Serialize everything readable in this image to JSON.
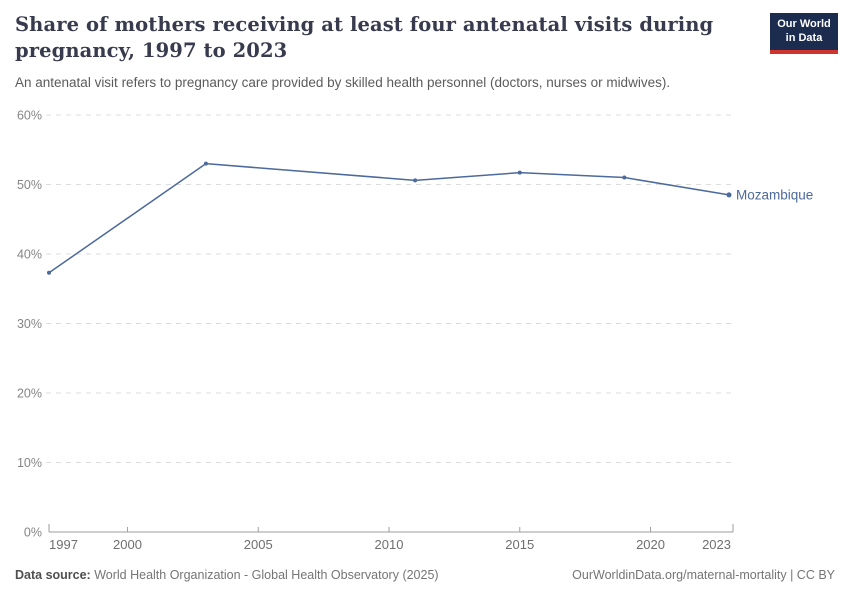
{
  "header": {
    "title": "Share of mothers receiving at least four antenatal visits during pregnancy, 1997 to 2023",
    "subtitle": "An antenatal visit refers to pregnancy care provided by skilled health personnel (doctors, nurses or midwives).",
    "logo": {
      "line1": "Our World",
      "line2": "in Data",
      "bg_color": "#1b2c4e",
      "accent_color": "#d1342c"
    }
  },
  "chart_data": {
    "type": "line",
    "title": "Share of mothers receiving at least four antenatal visits during pregnancy, 1997 to 2023",
    "xlabel": "",
    "ylabel": "",
    "xlim": [
      1997,
      2023
    ],
    "ylim": [
      0,
      60
    ],
    "grid": "horizontal-dashed",
    "legend_position": "end-of-line-label",
    "x_ticks": [
      1997,
      2000,
      2005,
      2010,
      2015,
      2020,
      2023
    ],
    "y_ticks": [
      0,
      10,
      20,
      30,
      40,
      50,
      60
    ],
    "y_tick_labels": [
      "0%",
      "10%",
      "20%",
      "30%",
      "40%",
      "50%",
      "60%"
    ],
    "series": [
      {
        "name": "Mozambique",
        "color": "#4C6A9C",
        "x": [
          1997,
          2003,
          2011,
          2015,
          2019,
          2023
        ],
        "values": [
          37.3,
          53,
          50.6,
          51.7,
          51,
          48.5
        ]
      }
    ],
    "colors": {
      "gridline": "#dcdcdc",
      "axis": "#9e9e9e",
      "y_tick_label": "#858585",
      "x_tick_label": "#6f6f6f"
    }
  },
  "footer": {
    "source_label": "Data source:",
    "source_value": " World Health Organization - Global Health Observatory (2025)",
    "attribution": "OurWorldinData.org/maternal-mortality | CC BY"
  }
}
